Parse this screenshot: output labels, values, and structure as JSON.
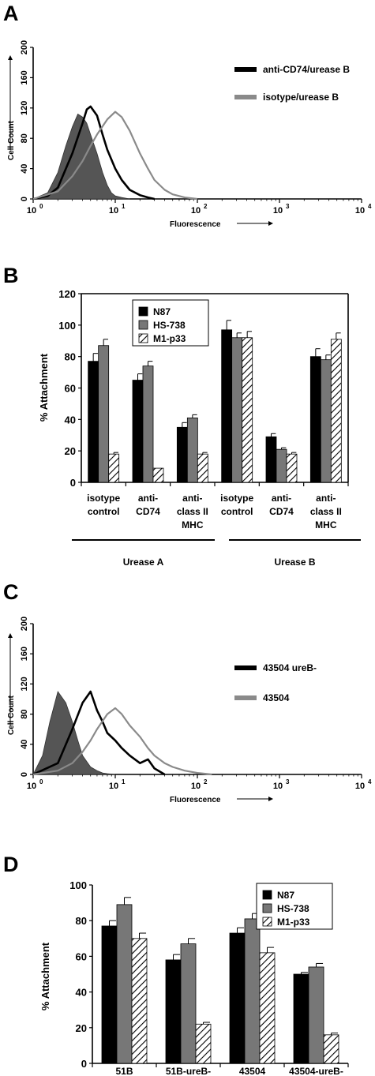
{
  "chart_data": [
    {
      "panel": "A",
      "type": "histogram",
      "xlabel": "Fluorescence",
      "ylabel": "Cell Count",
      "xscale": "log",
      "xlim": [
        1,
        10000
      ],
      "ylim": [
        0,
        200
      ],
      "xticks": [
        "10",
        "10",
        "10",
        "10",
        "10"
      ],
      "xtick_exps": [
        "0",
        "1",
        "2",
        "3",
        "4"
      ],
      "yticks": [
        "0",
        "40",
        "80",
        "120",
        "160",
        "200"
      ],
      "legend_position": "top-right",
      "series": [
        {
          "name": "",
          "role": "filled control",
          "color": "#555555",
          "x": [
            1.0,
            1.5,
            2.0,
            2.5,
            3.0,
            3.5,
            4.0,
            4.5,
            5.0,
            6.0,
            7.0,
            8.0,
            9.0,
            10.0,
            12.0,
            15.0
          ],
          "y": [
            0,
            8,
            35,
            70,
            95,
            112,
            108,
            100,
            85,
            60,
            35,
            18,
            8,
            4,
            2,
            0
          ]
        },
        {
          "name": "anti-CD74/urease B",
          "color": "#000000",
          "x": [
            1.0,
            1.5,
            2.0,
            3.0,
            4.0,
            4.5,
            5.0,
            6.0,
            7.0,
            8.0,
            10.0,
            12.0,
            15.0,
            20.0,
            25.0,
            30.0
          ],
          "y": [
            0,
            4,
            15,
            60,
            100,
            118,
            122,
            110,
            85,
            65,
            40,
            25,
            12,
            5,
            2,
            0
          ]
        },
        {
          "name": "isotype/urease B",
          "color": "#8a8a8a",
          "x": [
            1.0,
            2.0,
            3.0,
            4.0,
            5.0,
            6.0,
            8.0,
            10.0,
            12.0,
            15.0,
            20.0,
            25.0,
            30.0,
            40.0,
            50.0,
            70.0,
            100.0
          ],
          "y": [
            0,
            10,
            30,
            50,
            70,
            85,
            105,
            115,
            108,
            90,
            60,
            40,
            25,
            12,
            6,
            2,
            0
          ]
        }
      ]
    },
    {
      "panel": "B",
      "type": "bar",
      "ylabel": "% Attachment",
      "ylim": [
        0,
        120
      ],
      "yticks": [
        "0",
        "20",
        "40",
        "60",
        "80",
        "100",
        "120"
      ],
      "legend_position": "top-left",
      "categories": [
        [
          "isotype",
          "control"
        ],
        [
          "anti-",
          "CD74"
        ],
        [
          "anti-",
          "class II",
          "MHC"
        ],
        [
          "isotype",
          "control"
        ],
        [
          "anti-",
          "CD74"
        ],
        [
          "anti-",
          "class II",
          "MHC"
        ]
      ],
      "groups": [
        "Urease A",
        "Urease B"
      ],
      "series": [
        {
          "name": "N87",
          "color": "#000000",
          "values": [
            77,
            65,
            35,
            97,
            29,
            80
          ],
          "errors": [
            5,
            4,
            3,
            6,
            2,
            5
          ]
        },
        {
          "name": "HS-738",
          "color": "#777777",
          "values": [
            87,
            74,
            41,
            92,
            21,
            78
          ],
          "errors": [
            4,
            3,
            2,
            3,
            1,
            3
          ]
        },
        {
          "name": "M1-p33",
          "color": "hatched",
          "values": [
            18,
            9,
            18,
            92,
            18,
            91
          ],
          "errors": [
            1,
            0,
            1,
            4,
            1,
            4
          ]
        }
      ]
    },
    {
      "panel": "C",
      "type": "histogram",
      "xlabel": "Fluorescence",
      "ylabel": "Cell Count",
      "xscale": "log",
      "xlim": [
        1,
        10000
      ],
      "ylim": [
        0,
        200
      ],
      "xticks": [
        "10",
        "10",
        "10",
        "10",
        "10"
      ],
      "xtick_exps": [
        "0",
        "1",
        "2",
        "3",
        "4"
      ],
      "yticks": [
        "0",
        "40",
        "80",
        "120",
        "160",
        "200"
      ],
      "legend_position": "top-right",
      "series": [
        {
          "name": "",
          "role": "filled control",
          "color": "#555555",
          "x": [
            1.0,
            1.3,
            1.6,
            2.0,
            2.5,
            3.0,
            3.5,
            4.0,
            5.0,
            6.0,
            7.0,
            8.0,
            10.0
          ],
          "y": [
            0,
            25,
            70,
            110,
            95,
            70,
            45,
            25,
            10,
            5,
            2,
            1,
            0
          ]
        },
        {
          "name": "43504 ureB-",
          "color": "#000000",
          "x": [
            1.0,
            2.0,
            3.0,
            4.0,
            5.0,
            6.0,
            7.0,
            8.0,
            10.0,
            12.0,
            15.0,
            20.0,
            25.0,
            30.0,
            40.0
          ],
          "y": [
            0,
            15,
            60,
            95,
            110,
            85,
            70,
            55,
            45,
            35,
            25,
            15,
            20,
            8,
            0
          ]
        },
        {
          "name": "43504",
          "color": "#8a8a8a",
          "x": [
            1.0,
            2.0,
            3.0,
            4.0,
            5.0,
            6.0,
            8.0,
            10.0,
            12.0,
            15.0,
            20.0,
            25.0,
            30.0,
            40.0,
            50.0,
            70.0,
            100.0,
            150.0
          ],
          "y": [
            0,
            5,
            15,
            30,
            45,
            60,
            80,
            88,
            80,
            65,
            50,
            35,
            25,
            15,
            10,
            5,
            2,
            0
          ]
        }
      ]
    },
    {
      "panel": "D",
      "type": "bar",
      "ylabel": "% Attachment",
      "ylim": [
        0,
        100
      ],
      "yticks": [
        "0",
        "20",
        "40",
        "60",
        "80",
        "100"
      ],
      "legend_position": "top-right",
      "categories": [
        [
          "51B"
        ],
        [
          "51B-ureB-"
        ],
        [
          "43504"
        ],
        [
          "43504-ureB-"
        ]
      ],
      "series": [
        {
          "name": "N87",
          "color": "#000000",
          "values": [
            77,
            58,
            73,
            50
          ],
          "errors": [
            3,
            3,
            3,
            1
          ]
        },
        {
          "name": "HS-738",
          "color": "#777777",
          "values": [
            89,
            67,
            81,
            54
          ],
          "errors": [
            4,
            3,
            3,
            2
          ]
        },
        {
          "name": "M1-p33",
          "color": "hatched",
          "values": [
            70,
            22,
            62,
            16
          ],
          "errors": [
            3,
            1,
            3,
            1
          ]
        }
      ]
    }
  ]
}
